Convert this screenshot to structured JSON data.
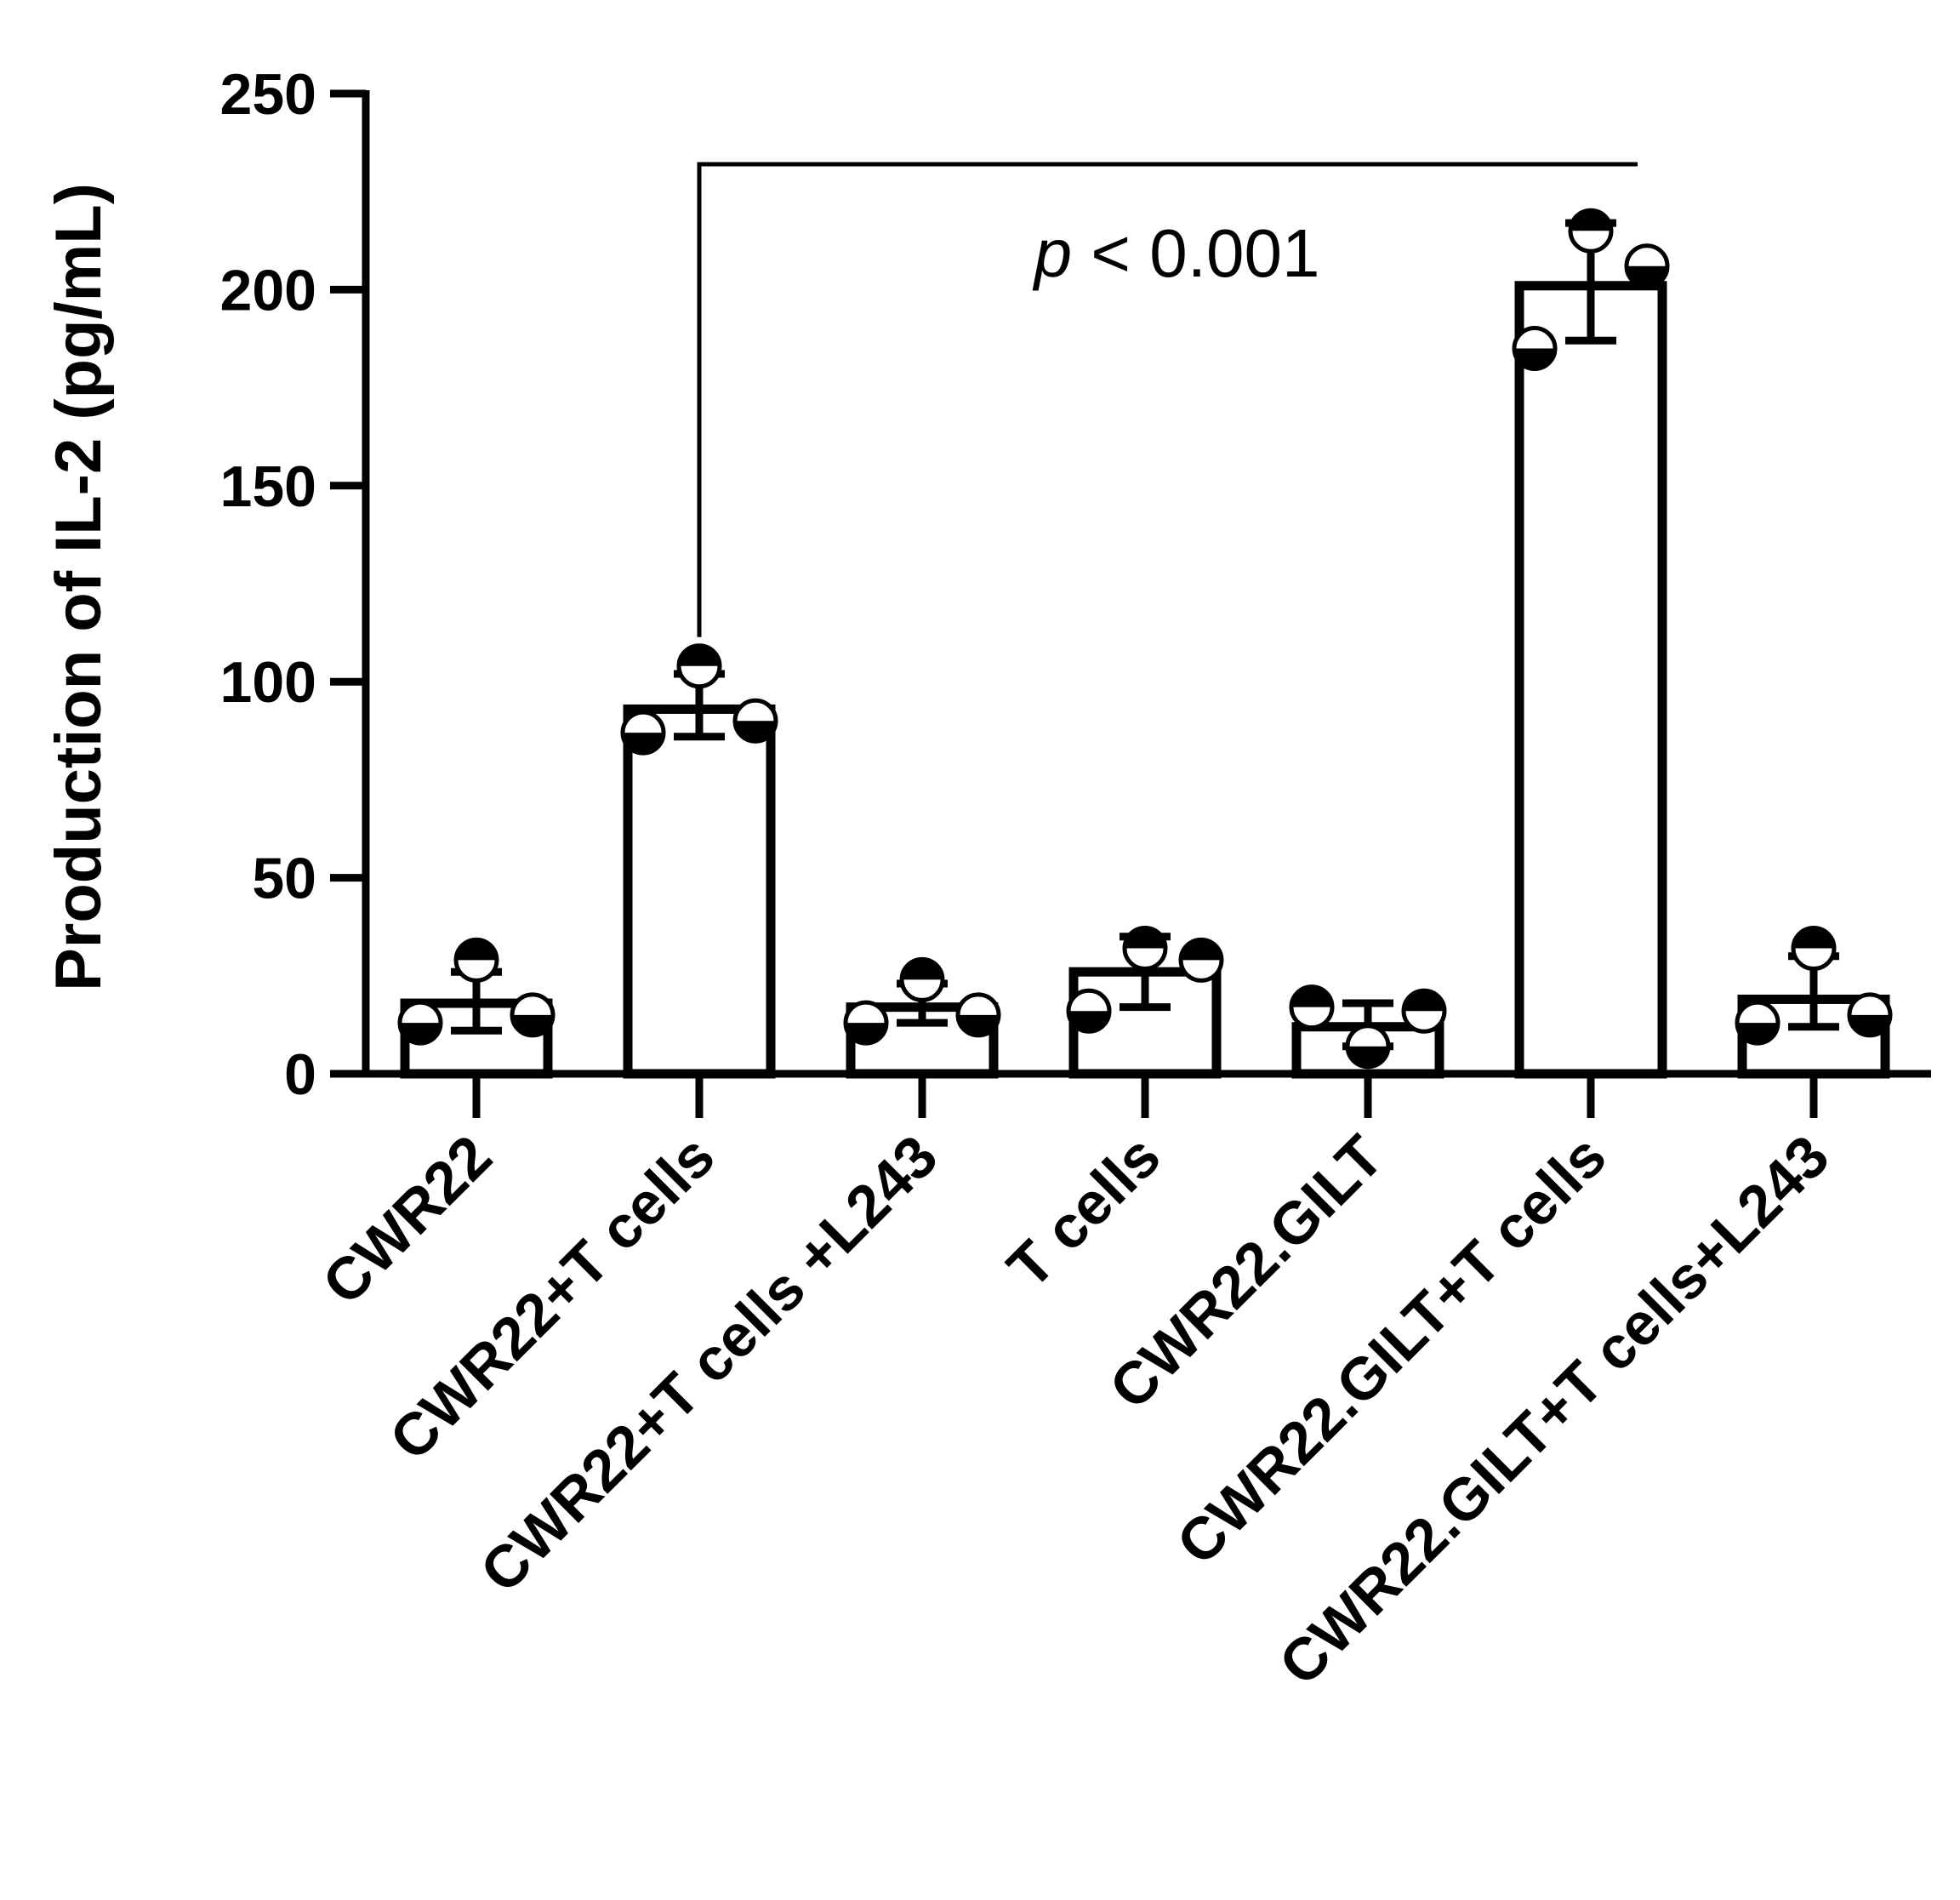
{
  "chart_data": {
    "type": "bar",
    "ylabel": "Production of IL-2 (pg/mL)",
    "xlabel": "",
    "ylim": [
      0,
      250
    ],
    "yticks": [
      0,
      50,
      100,
      150,
      200,
      250
    ],
    "categories": [
      "CWR22",
      "CWR22+T cells",
      "CWR22+T cells +L243",
      "T cells",
      "CWR22.GILT",
      "CWR22.GILT+T cells",
      "CWR22.GILT+T cells+L243"
    ],
    "values": [
      18,
      93,
      17,
      26,
      12,
      201,
      19
    ],
    "error_low": [
      11,
      86,
      13,
      17,
      7,
      187,
      12
    ],
    "error_high": [
      26,
      102,
      23,
      35,
      18,
      217,
      30
    ],
    "points": [
      [
        29,
        13,
        15
      ],
      [
        104,
        87,
        90
      ],
      [
        24,
        13,
        15
      ],
      [
        32,
        16,
        29
      ],
      [
        7,
        17,
        16
      ],
      [
        215,
        185,
        206
      ],
      [
        32,
        13,
        15
      ]
    ],
    "point_half_filled": [
      [
        "top",
        "bottom",
        "bottom"
      ],
      [
        "top",
        "bottom",
        "bottom"
      ],
      [
        "top",
        "bottom",
        "bottom"
      ],
      [
        "top",
        "bottom",
        "top"
      ],
      [
        "bottom",
        "top",
        "top"
      ],
      [
        "top",
        "bottom",
        "bottom"
      ],
      [
        "top",
        "bottom",
        "bottom"
      ]
    ],
    "significance": {
      "from_index": 1,
      "to_index": 5,
      "bracket_y": 232,
      "p_symbol": "p",
      "p_rest": " < 0.001"
    },
    "grid": false,
    "legend": "none"
  }
}
